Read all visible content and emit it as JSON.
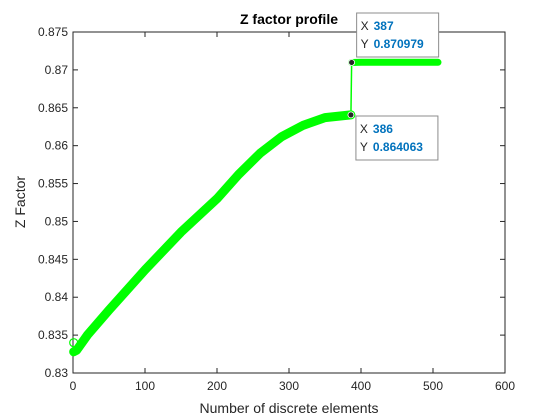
{
  "chart_data": {
    "type": "line",
    "title": "Z factor profile",
    "xlabel": "Number of discrete elements",
    "ylabel": "Z Factor",
    "xlim": [
      0,
      600
    ],
    "ylim": [
      0.83,
      0.875
    ],
    "xticks": [
      0,
      100,
      200,
      300,
      400,
      500,
      600
    ],
    "yticks": [
      0.83,
      0.835,
      0.84,
      0.845,
      0.85,
      0.855,
      0.86,
      0.865,
      0.87,
      0.875
    ],
    "xtick_labels": [
      "0",
      "100",
      "200",
      "300",
      "400",
      "500",
      "600"
    ],
    "ytick_labels": [
      "0.83",
      "0.835",
      "0.84",
      "0.845",
      "0.85",
      "0.855",
      "0.86",
      "0.865",
      "0.87",
      "0.875"
    ],
    "grid": false,
    "series": [
      {
        "color": "#00ff00",
        "points": [
          [
            1,
            0.8328
          ],
          [
            5,
            0.833
          ],
          [
            20,
            0.835
          ],
          [
            50,
            0.8383
          ],
          [
            100,
            0.8436
          ],
          [
            150,
            0.8486
          ],
          [
            200,
            0.853
          ],
          [
            230,
            0.8562
          ],
          [
            260,
            0.859
          ],
          [
            290,
            0.8612
          ],
          [
            320,
            0.8627
          ],
          [
            350,
            0.8637
          ],
          [
            386,
            0.864063
          ],
          [
            387,
            0.870979
          ],
          [
            400,
            0.871
          ],
          [
            450,
            0.871
          ],
          [
            507,
            0.871
          ]
        ]
      }
    ],
    "datatips": [
      {
        "x_label": "X",
        "x_value": "387",
        "y_label": "Y",
        "y_value": "0.870979",
        "x": 387,
        "y": 0.870979
      },
      {
        "x_label": "X",
        "x_value": "386",
        "y_label": "Y",
        "y_value": "0.864063",
        "x": 386,
        "y": 0.864063
      }
    ]
  }
}
